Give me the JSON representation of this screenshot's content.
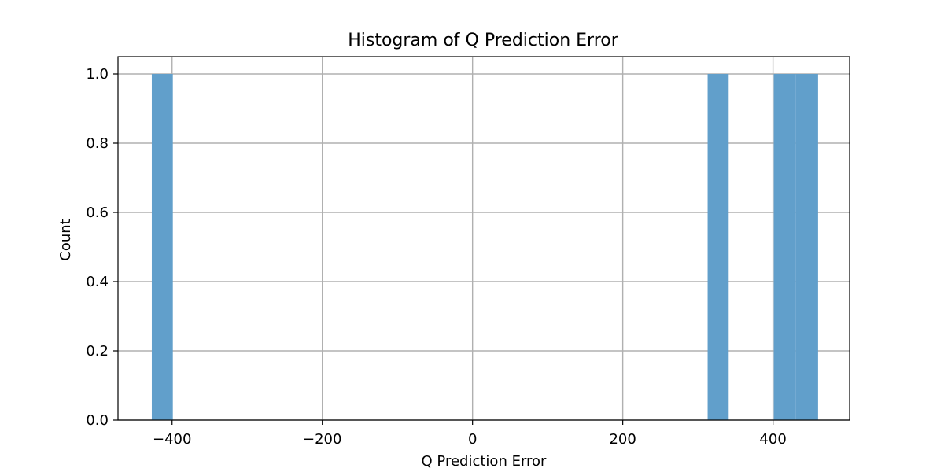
{
  "chart_data": {
    "type": "bar",
    "title": "Histogram of Q Prediction Error",
    "xlabel": "Q Prediction Error",
    "ylabel": "Count",
    "xlim": [
      -472,
      502
    ],
    "ylim": [
      0,
      1.05
    ],
    "xticks": [
      -400,
      -200,
      0,
      200,
      400
    ],
    "xtick_labels": [
      "−400",
      "−200",
      "0",
      "200",
      "400"
    ],
    "yticks": [
      0.0,
      0.2,
      0.4,
      0.6,
      0.8,
      1.0
    ],
    "ytick_labels": [
      "0.0",
      "0.2",
      "0.4",
      "0.6",
      "0.8",
      "1.0"
    ],
    "bins": [
      {
        "x0": -427,
        "x1": -399,
        "count": 1
      },
      {
        "x0": 313,
        "x1": 341,
        "count": 1
      },
      {
        "x0": 401,
        "x1": 430,
        "count": 1
      },
      {
        "x0": 430,
        "x1": 460,
        "count": 1
      }
    ],
    "grid": true,
    "bar_color": "#619fcb",
    "grid_color": "#b0b0b0"
  }
}
